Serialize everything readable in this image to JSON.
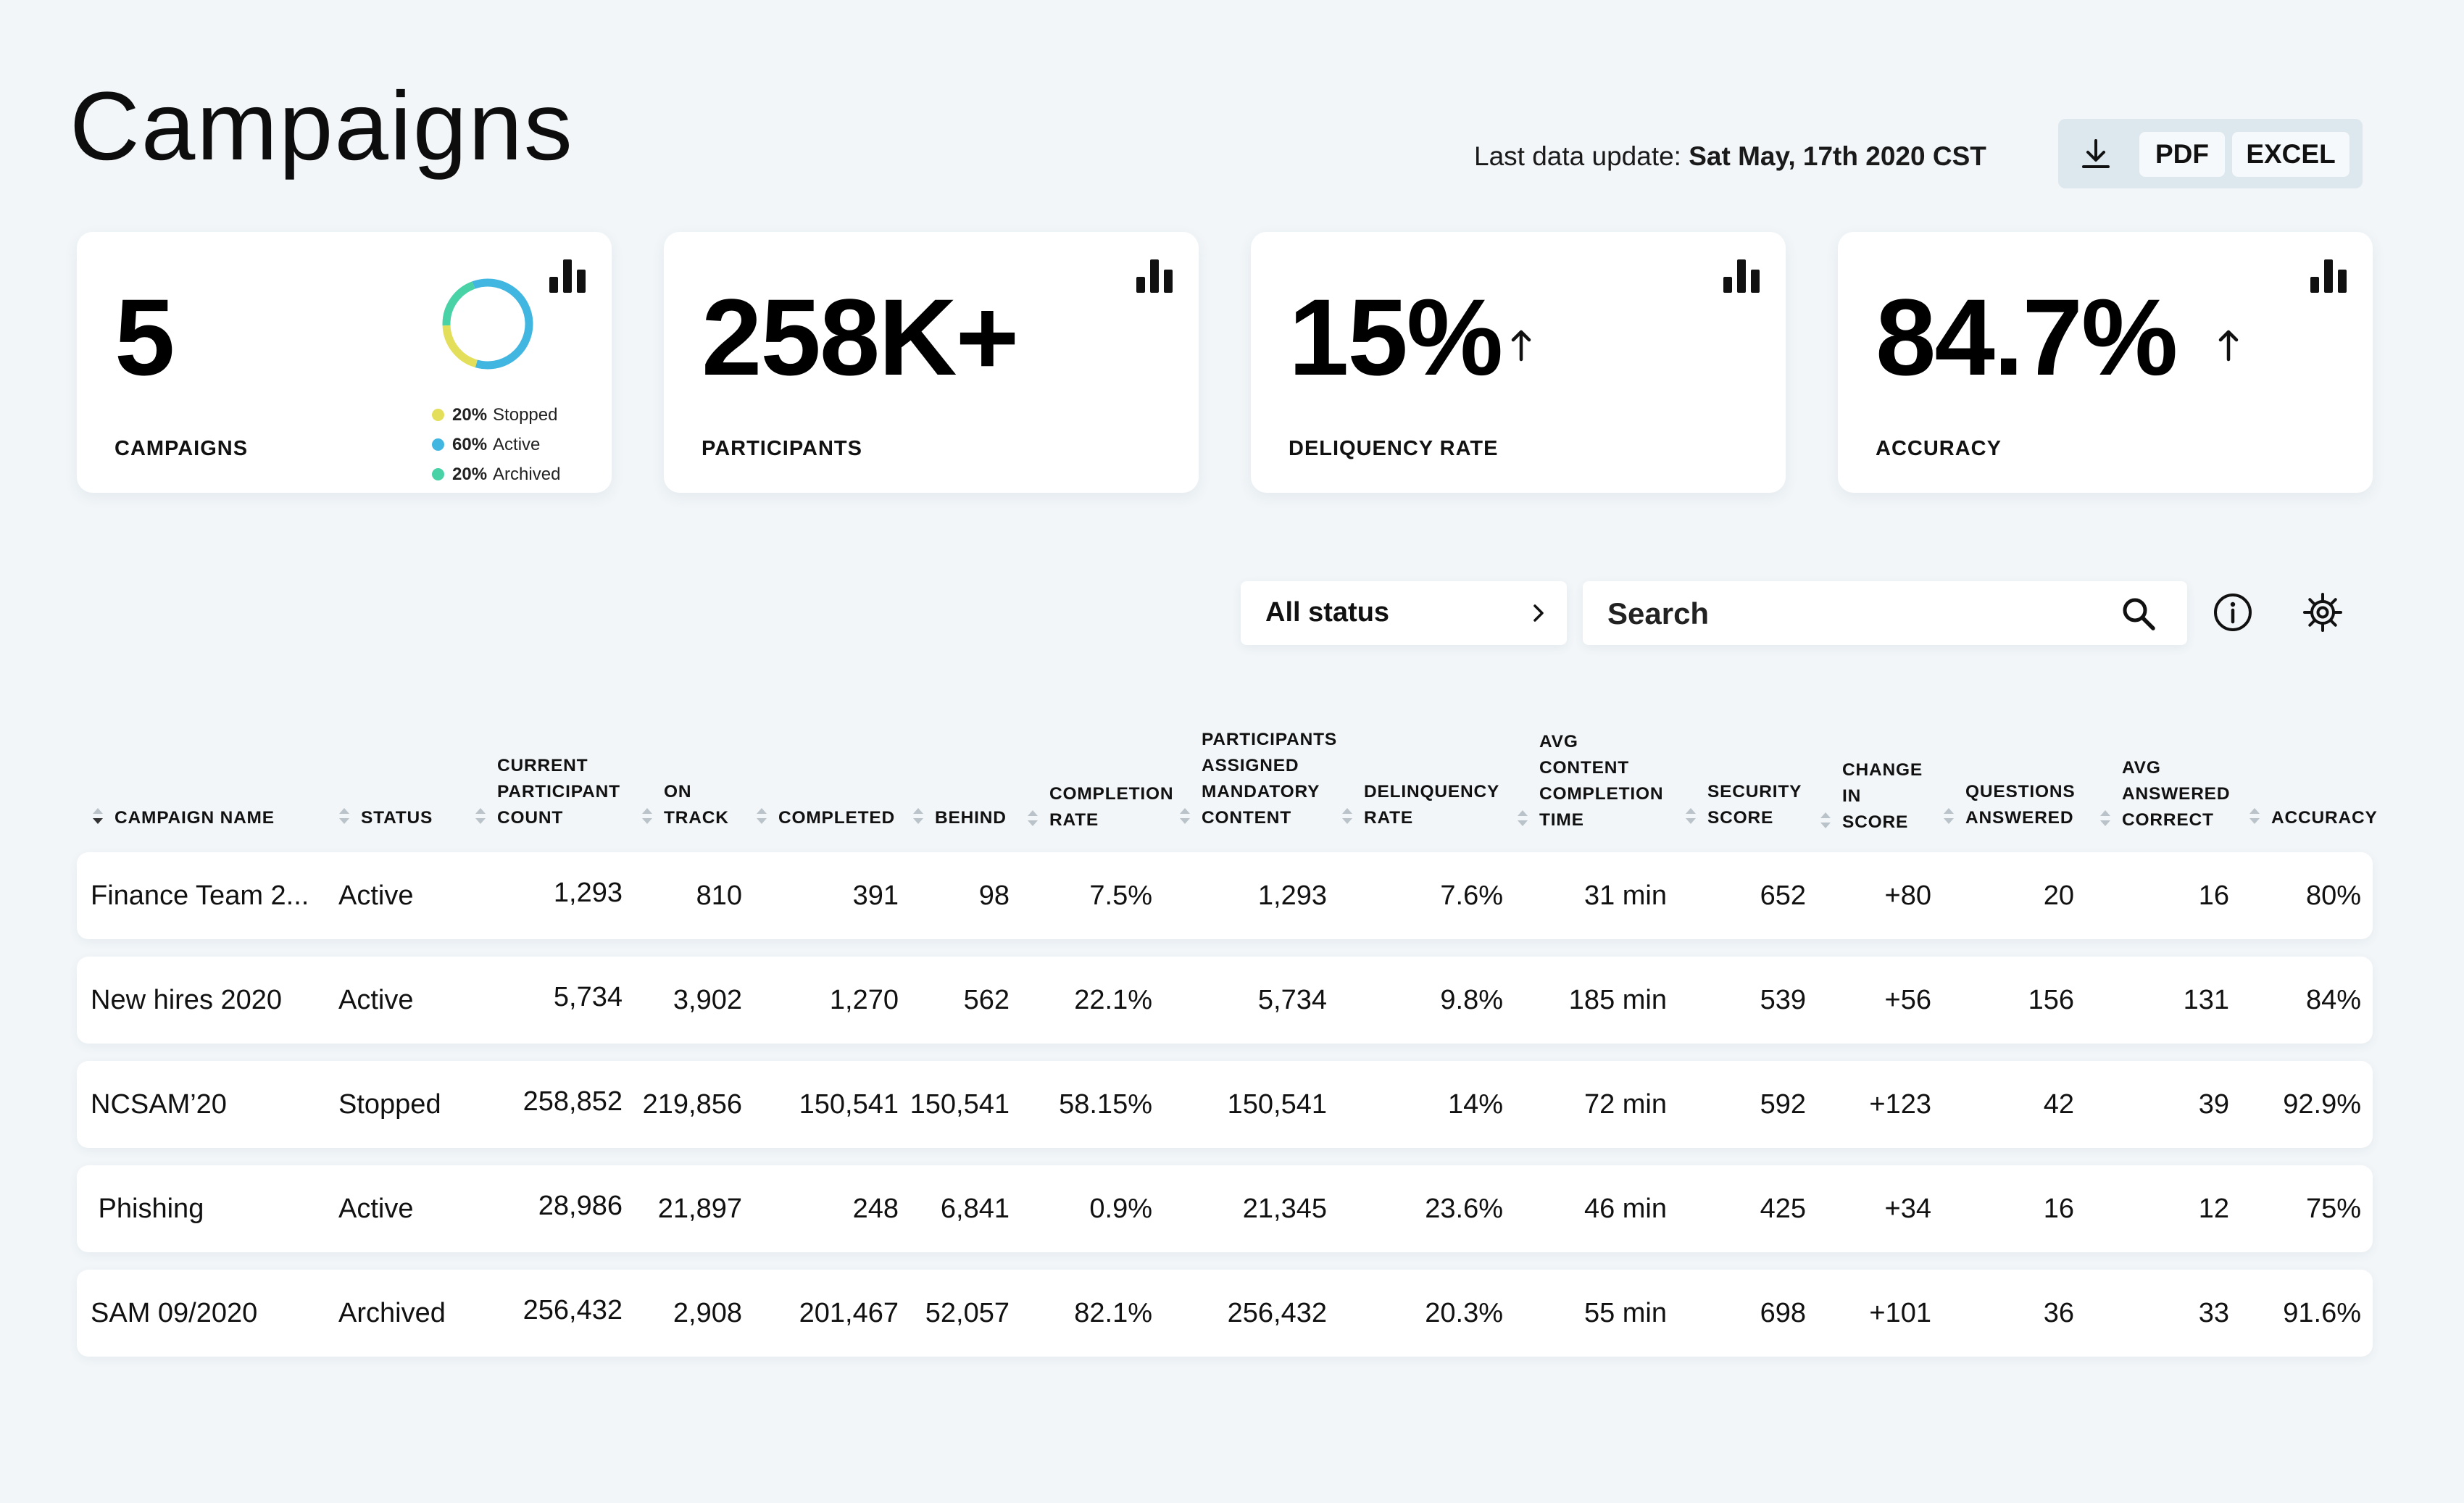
{
  "page": {
    "title": "Campaigns",
    "last_update_label": "Last data update:",
    "last_update_value": "Sat May, 17th 2020 CST"
  },
  "export": {
    "download_icon": "download-icon",
    "pdf_label": "PDF",
    "excel_label": "EXCEL"
  },
  "stats": {
    "campaigns": {
      "value": "5",
      "label": "CAMPAIGNS",
      "legend": [
        {
          "pct": "20%",
          "name": "Stopped",
          "fraction": 0.2,
          "color": "#e3df5b"
        },
        {
          "pct": "60%",
          "name": "Active",
          "fraction": 0.6,
          "color": "#41b6e0"
        },
        {
          "pct": "20%",
          "name": "Archived",
          "fraction": 0.2,
          "color": "#49d2a6"
        }
      ]
    },
    "participants": {
      "value": "258K+",
      "label": "PARTICIPANTS"
    },
    "delinquency": {
      "value": "15%",
      "label": "DELIQUENCY RATE",
      "trend": "up"
    },
    "accuracy": {
      "value": "84.7%",
      "label": "ACCURACY",
      "trend": "up"
    },
    "chart_icon": "bar-chart-icon"
  },
  "filters": {
    "status_label": "All status",
    "search_placeholder": "Search"
  },
  "table": {
    "columns": [
      "CAMPAIGN NAME",
      "STATUS",
      "CURRENT\nPARTICIPANT\nCOUNT",
      "ON\nTRACK",
      "COMPLETED",
      "BEHIND",
      "COMPLETION\nRATE",
      "PARTICIPANTS\nASSIGNED\nMANDATORY\nCONTENT",
      "DELINQUENCY\nRATE",
      "AVG\nCONTENT\nCOMPLETION\nTIME",
      "SECURITY\nSCORE",
      "CHANGE\nIN\nSCORE",
      "QUESTIONS\nANSWERED",
      "AVG\nANSWERED\nCORRECT",
      "ACCURACY"
    ],
    "rows": [
      [
        "Finance Team 2...",
        "Active",
        "1,293",
        "810",
        "391",
        "98",
        "7.5%",
        "1,293",
        "7.6%",
        "31 min",
        "652",
        "+80",
        "20",
        "16",
        "80%"
      ],
      [
        "New hires 2020",
        "Active",
        "5,734",
        "3,902",
        "1,270",
        "562",
        "22.1%",
        "5,734",
        "9.8%",
        "185 min",
        "539",
        "+56",
        "156",
        "131",
        "84%"
      ],
      [
        "NCSAM’20",
        "Stopped",
        "258,852",
        "219,856",
        "150,541",
        "150,541",
        "58.15%",
        "150,541",
        "14%",
        "72 min",
        "592",
        "+123",
        "42",
        "39",
        "92.9%"
      ],
      [
        " Phishing",
        "Active",
        "28,986",
        "21,897",
        "248",
        "6,841",
        "0.9%",
        "21,345",
        "23.6%",
        "46 min",
        "425",
        "+34",
        "16",
        "12",
        "75%"
      ],
      [
        "SAM 09/2020",
        "Archived",
        "256,432",
        "2,908",
        "201,467",
        "52,057",
        "82.1%",
        "256,432",
        "20.3%",
        "55 min",
        "698",
        "+101",
        "36",
        "33",
        "91.6%"
      ]
    ]
  }
}
